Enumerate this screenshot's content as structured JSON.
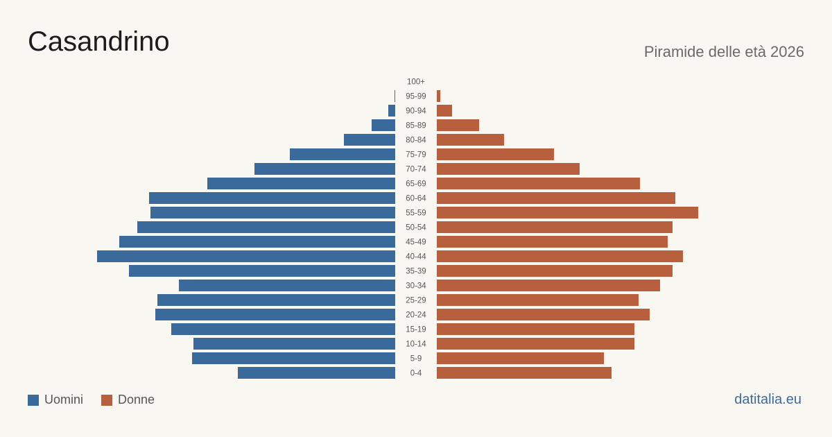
{
  "header": {
    "title": "Casandrino",
    "subtitle": "Piramide delle età 2026"
  },
  "legend": {
    "men_label": "Uomini",
    "women_label": "Donne"
  },
  "footer": {
    "brand": "datitalia.eu"
  },
  "colors": {
    "men": "#3a6a9b",
    "women": "#b85f3d",
    "background": "#f9f7f2"
  },
  "chart_data": {
    "type": "bar",
    "orientation": "horizontal-pyramid",
    "categories": [
      "100+",
      "95-99",
      "90-94",
      "85-89",
      "80-84",
      "75-79",
      "70-74",
      "65-69",
      "60-64",
      "55-59",
      "50-54",
      "45-49",
      "40-44",
      "35-39",
      "30-34",
      "25-29",
      "20-24",
      "15-19",
      "10-14",
      "5-9",
      "0-4"
    ],
    "series": [
      {
        "name": "Uomini",
        "values": [
          0,
          1,
          10,
          34,
          74,
          152,
          203,
          271,
          355,
          353,
          372,
          398,
          430,
          384,
          312,
          343,
          346,
          323,
          291,
          293,
          227
        ]
      },
      {
        "name": "Donne",
        "values": [
          0,
          5,
          22,
          61,
          97,
          169,
          206,
          293,
          344,
          377,
          340,
          333,
          355,
          340,
          322,
          291,
          307,
          285,
          285,
          241,
          252
        ]
      }
    ],
    "axis_labels_shown": false,
    "grid": false,
    "legend_position": "bottom-left"
  }
}
